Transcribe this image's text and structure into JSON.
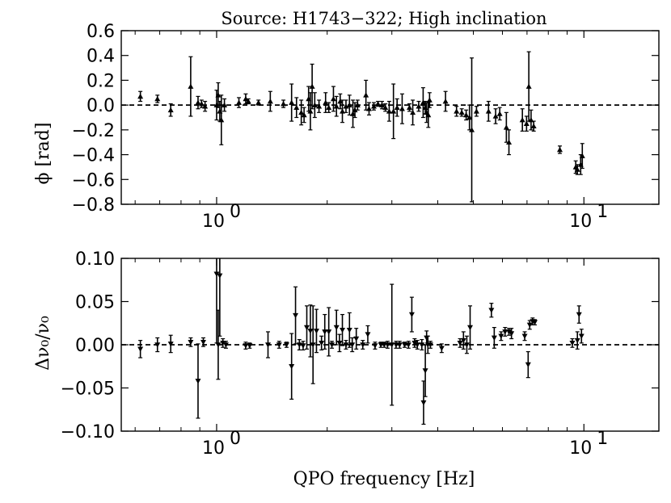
{
  "chart_data": [
    {
      "type": "scatter",
      "title": "Source: H1743−322; High inclination",
      "ylabel": "ϕ [rad]",
      "xlabel": "",
      "xscale": "log",
      "xlim": [
        0.55,
        16
      ],
      "ylim": [
        -0.8,
        0.6
      ],
      "yticks": [
        0.6,
        0.4,
        0.2,
        0.0,
        -0.2,
        -0.4,
        -0.6,
        -0.8
      ],
      "ytick_labels": [
        "0.6",
        "0.4",
        "0.2",
        "0.0",
        "−0.2",
        "−0.4",
        "−0.6",
        "−0.8"
      ],
      "xticks": [
        1,
        10
      ],
      "xtick_labels": [
        {
          "base": "10",
          "exp": "0"
        },
        {
          "base": "10",
          "exp": "1"
        }
      ],
      "reference_line": 0.0,
      "marker": "triangle-up",
      "points": [
        {
          "x": 0.62,
          "y": 0.07,
          "err": 0.04
        },
        {
          "x": 0.69,
          "y": 0.05,
          "err": 0.03
        },
        {
          "x": 0.75,
          "y": -0.04,
          "err": 0.05
        },
        {
          "x": 0.85,
          "y": 0.15,
          "err": 0.24
        },
        {
          "x": 0.89,
          "y": 0.02,
          "err": 0.05
        },
        {
          "x": 0.91,
          "y": 0.01,
          "err": 0.03
        },
        {
          "x": 0.93,
          "y": -0.01,
          "err": 0.04
        },
        {
          "x": 1.0,
          "y": 0.0,
          "err": 0.12
        },
        {
          "x": 1.01,
          "y": 0.08,
          "err": 0.1
        },
        {
          "x": 1.02,
          "y": -0.05,
          "err": 0.08
        },
        {
          "x": 1.03,
          "y": -0.12,
          "err": 0.2
        },
        {
          "x": 1.05,
          "y": 0.0,
          "err": 0.05
        },
        {
          "x": 1.15,
          "y": 0.02,
          "err": 0.04
        },
        {
          "x": 1.2,
          "y": 0.05,
          "err": 0.04
        },
        {
          "x": 1.22,
          "y": 0.03,
          "err": 0.02
        },
        {
          "x": 1.3,
          "y": 0.02,
          "err": 0.02
        },
        {
          "x": 1.4,
          "y": 0.03,
          "err": 0.08
        },
        {
          "x": 1.52,
          "y": 0.01,
          "err": 0.03
        },
        {
          "x": 1.6,
          "y": 0.02,
          "err": 0.15
        },
        {
          "x": 1.65,
          "y": -0.02,
          "err": 0.08
        },
        {
          "x": 1.7,
          "y": -0.06,
          "err": 0.1
        },
        {
          "x": 1.73,
          "y": -0.08,
          "err": 0.06
        },
        {
          "x": 1.78,
          "y": 0.05,
          "err": 0.1
        },
        {
          "x": 1.8,
          "y": -0.05,
          "err": 0.15
        },
        {
          "x": 1.82,
          "y": 0.15,
          "err": 0.18
        },
        {
          "x": 1.85,
          "y": 0.0,
          "err": 0.1
        },
        {
          "x": 1.9,
          "y": -0.01,
          "err": 0.05
        },
        {
          "x": 1.98,
          "y": 0.02,
          "err": 0.08
        },
        {
          "x": 2.02,
          "y": -0.02,
          "err": 0.04
        },
        {
          "x": 2.08,
          "y": 0.05,
          "err": 0.1
        },
        {
          "x": 2.12,
          "y": -0.01,
          "err": 0.08
        },
        {
          "x": 2.17,
          "y": 0.03,
          "err": 0.06
        },
        {
          "x": 2.2,
          "y": -0.05,
          "err": 0.09
        },
        {
          "x": 2.25,
          "y": -0.01,
          "err": 0.05
        },
        {
          "x": 2.3,
          "y": 0.0,
          "err": 0.08
        },
        {
          "x": 2.35,
          "y": -0.07,
          "err": 0.11
        },
        {
          "x": 2.38,
          "y": -0.04,
          "err": 0.06
        },
        {
          "x": 2.42,
          "y": 0.0,
          "err": 0.04
        },
        {
          "x": 2.55,
          "y": 0.08,
          "err": 0.12
        },
        {
          "x": 2.6,
          "y": -0.03,
          "err": 0.05
        },
        {
          "x": 2.68,
          "y": -0.01,
          "err": 0.03
        },
        {
          "x": 2.75,
          "y": 0.01,
          "err": 0.02
        },
        {
          "x": 2.82,
          "y": 0.0,
          "err": 0.03
        },
        {
          "x": 2.88,
          "y": -0.02,
          "err": 0.03
        },
        {
          "x": 2.95,
          "y": -0.05,
          "err": 0.08
        },
        {
          "x": 3.03,
          "y": -0.05,
          "err": 0.22
        },
        {
          "x": 3.1,
          "y": -0.02,
          "err": 0.07
        },
        {
          "x": 3.2,
          "y": -0.03,
          "err": 0.12
        },
        {
          "x": 3.35,
          "y": -0.02,
          "err": 0.03
        },
        {
          "x": 3.42,
          "y": -0.06,
          "err": 0.1
        },
        {
          "x": 3.55,
          "y": -0.01,
          "err": 0.04
        },
        {
          "x": 3.65,
          "y": 0.02,
          "err": 0.12
        },
        {
          "x": 3.7,
          "y": -0.02,
          "err": 0.05
        },
        {
          "x": 3.73,
          "y": -0.06,
          "err": 0.08
        },
        {
          "x": 3.77,
          "y": -0.08,
          "err": 0.1
        },
        {
          "x": 3.8,
          "y": 0.04,
          "err": 0.06
        },
        {
          "x": 4.2,
          "y": 0.03,
          "err": 0.08
        },
        {
          "x": 4.5,
          "y": -0.05,
          "err": 0.04
        },
        {
          "x": 4.65,
          "y": -0.06,
          "err": 0.03
        },
        {
          "x": 4.78,
          "y": -0.08,
          "err": 0.04
        },
        {
          "x": 4.88,
          "y": -0.1,
          "err": 0.1
        },
        {
          "x": 4.95,
          "y": -0.2,
          "err": 0.58
        },
        {
          "x": 5.1,
          "y": -0.05,
          "err": 0.04
        },
        {
          "x": 5.5,
          "y": -0.05,
          "err": 0.08
        },
        {
          "x": 5.75,
          "y": -0.09,
          "err": 0.06
        },
        {
          "x": 5.9,
          "y": -0.07,
          "err": 0.05
        },
        {
          "x": 6.15,
          "y": -0.18,
          "err": 0.12
        },
        {
          "x": 6.25,
          "y": -0.3,
          "err": 0.1
        },
        {
          "x": 6.8,
          "y": -0.12,
          "err": 0.09
        },
        {
          "x": 6.98,
          "y": -0.15,
          "err": 0.06
        },
        {
          "x": 7.08,
          "y": 0.15,
          "err": 0.28
        },
        {
          "x": 7.18,
          "y": -0.12,
          "err": 0.08
        },
        {
          "x": 7.3,
          "y": -0.17,
          "err": 0.04
        },
        {
          "x": 8.6,
          "y": -0.36,
          "err": 0.03
        },
        {
          "x": 9.5,
          "y": -0.5,
          "err": 0.05
        },
        {
          "x": 9.6,
          "y": -0.52,
          "err": 0.04
        },
        {
          "x": 9.8,
          "y": -0.48,
          "err": 0.08
        },
        {
          "x": 9.9,
          "y": -0.41,
          "err": 0.1
        }
      ]
    },
    {
      "type": "scatter",
      "title": "",
      "ylabel": "Δν₀/ν₀",
      "xlabel": "QPO frequency [Hz]",
      "xscale": "log",
      "xlim": [
        0.55,
        16
      ],
      "ylim": [
        -0.1,
        0.1
      ],
      "yticks": [
        0.1,
        0.05,
        0.0,
        -0.05,
        -0.1
      ],
      "ytick_labels": [
        "0.10",
        "0.05",
        "0.00",
        "−0.05",
        "−0.10"
      ],
      "xticks": [
        1,
        10
      ],
      "xtick_labels": [
        {
          "base": "10",
          "exp": "0"
        },
        {
          "base": "10",
          "exp": "1"
        }
      ],
      "reference_line": 0.0,
      "marker": "triangle-down",
      "points": [
        {
          "x": 0.62,
          "y": -0.005,
          "err": 0.01
        },
        {
          "x": 0.69,
          "y": 0.0,
          "err": 0.008
        },
        {
          "x": 0.75,
          "y": 0.001,
          "err": 0.01
        },
        {
          "x": 0.85,
          "y": 0.003,
          "err": 0.005
        },
        {
          "x": 0.89,
          "y": -0.042,
          "err": 0.043
        },
        {
          "x": 0.92,
          "y": 0.003,
          "err": 0.005
        },
        {
          "x": 1.0,
          "y": 0.082,
          "err": 0.08
        },
        {
          "x": 1.01,
          "y": 0.0,
          "err": 0.04
        },
        {
          "x": 1.02,
          "y": 0.08,
          "err": 0.07
        },
        {
          "x": 1.04,
          "y": 0.002,
          "err": 0.005
        },
        {
          "x": 1.06,
          "y": 0.0,
          "err": 0.004
        },
        {
          "x": 1.2,
          "y": -0.001,
          "err": 0.004
        },
        {
          "x": 1.23,
          "y": -0.001,
          "err": 0.003
        },
        {
          "x": 1.38,
          "y": 0.0,
          "err": 0.015
        },
        {
          "x": 1.48,
          "y": 0.0,
          "err": 0.004
        },
        {
          "x": 1.55,
          "y": 0.0,
          "err": 0.003
        },
        {
          "x": 1.6,
          "y": -0.025,
          "err": 0.038
        },
        {
          "x": 1.64,
          "y": 0.034,
          "err": 0.033
        },
        {
          "x": 1.68,
          "y": 0.0,
          "err": 0.006
        },
        {
          "x": 1.72,
          "y": -0.001,
          "err": 0.005
        },
        {
          "x": 1.76,
          "y": 0.02,
          "err": 0.025
        },
        {
          "x": 1.8,
          "y": 0.016,
          "err": 0.03
        },
        {
          "x": 1.83,
          "y": 0.0,
          "err": 0.045
        },
        {
          "x": 1.87,
          "y": 0.016,
          "err": 0.025
        },
        {
          "x": 1.93,
          "y": 0.002,
          "err": 0.008
        },
        {
          "x": 1.97,
          "y": 0.015,
          "err": 0.02
        },
        {
          "x": 2.02,
          "y": 0.015,
          "err": 0.028
        },
        {
          "x": 2.06,
          "y": 0.0,
          "err": 0.004
        },
        {
          "x": 2.12,
          "y": 0.02,
          "err": 0.02
        },
        {
          "x": 2.16,
          "y": 0.002,
          "err": 0.01
        },
        {
          "x": 2.2,
          "y": 0.017,
          "err": 0.018
        },
        {
          "x": 2.25,
          "y": 0.0,
          "err": 0.005
        },
        {
          "x": 2.3,
          "y": 0.017,
          "err": 0.02
        },
        {
          "x": 2.34,
          "y": 0.0,
          "err": 0.008
        },
        {
          "x": 2.4,
          "y": 0.007,
          "err": 0.012
        },
        {
          "x": 2.5,
          "y": 0.0,
          "err": 0.005
        },
        {
          "x": 2.58,
          "y": 0.012,
          "err": 0.01
        },
        {
          "x": 2.7,
          "y": -0.001,
          "err": 0.004
        },
        {
          "x": 2.8,
          "y": 0.0,
          "err": 0.003
        },
        {
          "x": 2.86,
          "y": 0.0,
          "err": 0.003
        },
        {
          "x": 2.92,
          "y": 0.0,
          "err": 0.004
        },
        {
          "x": 3.0,
          "y": 0.0,
          "err": 0.07
        },
        {
          "x": 3.08,
          "y": 0.0,
          "err": 0.004
        },
        {
          "x": 3.15,
          "y": 0.0,
          "err": 0.004
        },
        {
          "x": 3.25,
          "y": 0.0,
          "err": 0.003
        },
        {
          "x": 3.33,
          "y": 0.0,
          "err": 0.004
        },
        {
          "x": 3.4,
          "y": 0.035,
          "err": 0.02
        },
        {
          "x": 3.46,
          "y": 0.002,
          "err": 0.005
        },
        {
          "x": 3.52,
          "y": 0.0,
          "err": 0.005
        },
        {
          "x": 3.62,
          "y": 0.0,
          "err": 0.006
        },
        {
          "x": 3.66,
          "y": -0.067,
          "err": 0.025
        },
        {
          "x": 3.7,
          "y": -0.03,
          "err": 0.03
        },
        {
          "x": 3.73,
          "y": 0.008,
          "err": 0.008
        },
        {
          "x": 3.76,
          "y": 0.0,
          "err": 0.01
        },
        {
          "x": 3.82,
          "y": 0.0,
          "err": 0.004
        },
        {
          "x": 4.1,
          "y": -0.004,
          "err": 0.005
        },
        {
          "x": 4.6,
          "y": 0.002,
          "err": 0.005
        },
        {
          "x": 4.7,
          "y": 0.005,
          "err": 0.01
        },
        {
          "x": 4.8,
          "y": 0.0,
          "err": 0.01
        },
        {
          "x": 4.9,
          "y": 0.02,
          "err": 0.025
        },
        {
          "x": 5.6,
          "y": 0.04,
          "err": 0.008
        },
        {
          "x": 5.7,
          "y": 0.008,
          "err": 0.012
        },
        {
          "x": 5.95,
          "y": 0.01,
          "err": 0.005
        },
        {
          "x": 6.1,
          "y": 0.015,
          "err": 0.005
        },
        {
          "x": 6.25,
          "y": 0.015,
          "err": 0.004
        },
        {
          "x": 6.35,
          "y": 0.013,
          "err": 0.006
        },
        {
          "x": 6.9,
          "y": 0.01,
          "err": 0.005
        },
        {
          "x": 7.05,
          "y": -0.023,
          "err": 0.015
        },
        {
          "x": 7.12,
          "y": 0.023,
          "err": 0.005
        },
        {
          "x": 7.25,
          "y": 0.027,
          "err": 0.004
        },
        {
          "x": 7.35,
          "y": 0.026,
          "err": 0.003
        },
        {
          "x": 9.3,
          "y": 0.002,
          "err": 0.005
        },
        {
          "x": 9.6,
          "y": 0.005,
          "err": 0.01
        },
        {
          "x": 9.7,
          "y": 0.035,
          "err": 0.01
        },
        {
          "x": 9.85,
          "y": 0.01,
          "err": 0.008
        }
      ]
    }
  ]
}
